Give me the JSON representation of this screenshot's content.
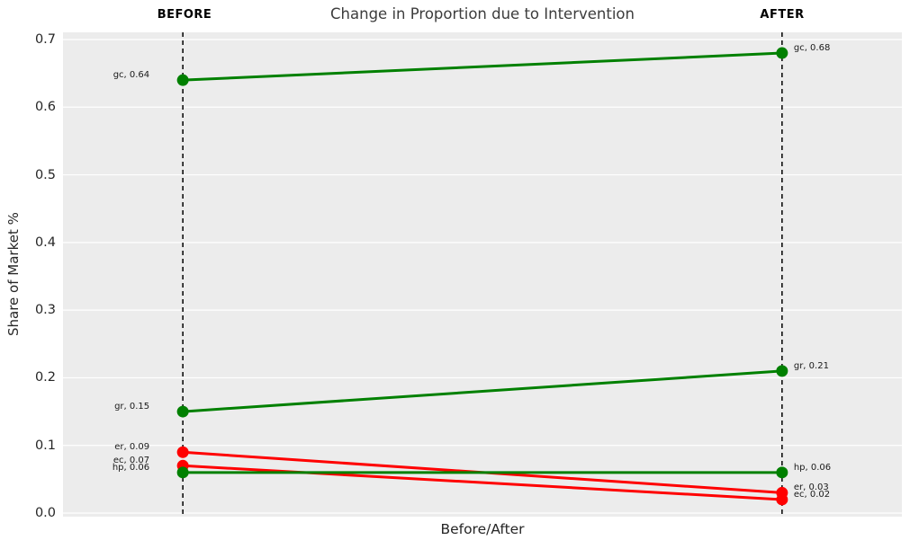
{
  "chart_data": {
    "type": "line",
    "variant": "slopegraph",
    "title": "Change in Proportion due to Intervention",
    "xlabel": "Before/After",
    "ylabel": "Share of Market %",
    "column_headers": [
      "BEFORE",
      "AFTER"
    ],
    "x": [
      0,
      1
    ],
    "xlim": [
      -0.2,
      1.2
    ],
    "ylim": [
      -0.005,
      0.71
    ],
    "yticks": [
      0.0,
      0.1,
      0.2,
      0.3,
      0.4,
      0.5,
      0.6,
      0.7
    ],
    "grid": "horizontal",
    "grid_color": "#ffffff",
    "plot_bg": "#ececec",
    "vline_color": "#000000",
    "colors": {
      "increase": "#008000",
      "decrease": "#ff0000"
    },
    "series": [
      {
        "name": "gc",
        "values": [
          0.64,
          0.68
        ],
        "color": "#008000",
        "before_label": "gc, 0.64",
        "after_label": "gc, 0.68"
      },
      {
        "name": "gr",
        "values": [
          0.15,
          0.21
        ],
        "color": "#008000",
        "before_label": "gr, 0.15",
        "after_label": "gr, 0.21"
      },
      {
        "name": "er",
        "values": [
          0.09,
          0.03
        ],
        "color": "#ff0000",
        "before_label": "er, 0.09",
        "after_label": "er, 0.03"
      },
      {
        "name": "ec",
        "values": [
          0.07,
          0.02
        ],
        "color": "#ff0000",
        "before_label": "ec, 0.07",
        "after_label": "ec, 0.02"
      },
      {
        "name": "hp",
        "values": [
          0.06,
          0.06
        ],
        "color": "#008000",
        "before_label": "hp, 0.06",
        "after_label": "hp, 0.06"
      }
    ]
  }
}
